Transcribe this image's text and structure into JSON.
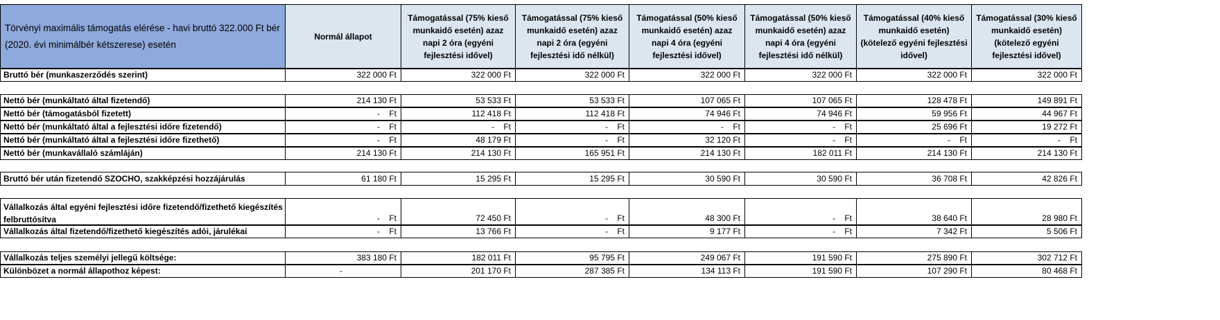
{
  "header": {
    "description": "Törvényi maximális támogatás elérése - havi bruttó 322.000 Ft bér (2020. évi minimálbér kétszerese) esetén",
    "columns": [
      "Normál állapot",
      "Támogatással (75% kieső munkaidő esetén) azaz napi 2 óra (egyéni fejlesztési idővel)",
      "Támogatással (75% kieső munkaidő esetén) azaz napi 2 óra (egyéni fejlesztési idő nélkül)",
      "Támogatással (50% kieső munkaidő esetén) azaz napi 4 óra (egyéni fejlesztési idővel)",
      "Támogatással (50% kieső munkaidő esetén) azaz napi 4 óra (egyéni fejlesztési idő nélkül)",
      "Támogatással (40% kieső munkaidő esetén) (kötelező egyéni fejlesztési idővel)",
      "Támogatással (30% kieső munkaidő esetén) (kötelező egyéni fejlesztési idővel)"
    ]
  },
  "rows": [
    {
      "label": "Bruttó bér (munkaszerződés szerint)",
      "values": [
        "322 000 Ft",
        "322 000 Ft",
        "322 000 Ft",
        "322 000 Ft",
        "322 000 Ft",
        "322 000 Ft",
        "322 000 Ft"
      ]
    },
    {
      "label": "Nettó bér (munkáltató által fizetendő)",
      "values": [
        "214 130 Ft",
        "53 533 Ft",
        "53 533 Ft",
        "107 065 Ft",
        "107 065 Ft",
        "128 478 Ft",
        "149 891 Ft"
      ]
    },
    {
      "label": "Nettó bér (támogatásból fizetett)",
      "values": [
        "-    Ft",
        "112 418 Ft",
        "112 418 Ft",
        "74 946 Ft",
        "74 946 Ft",
        "59 956 Ft",
        "44 967 Ft"
      ]
    },
    {
      "label": "Nettó bér (munkáltató által a fejlesztési időre fizetendő)",
      "values": [
        "-    Ft",
        "-    Ft",
        "-    Ft",
        "-    Ft",
        "-    Ft",
        "25 696 Ft",
        "19 272 Ft"
      ]
    },
    {
      "label": "Nettó bér (munkáltató által a fejlesztési időre fizethető)",
      "values": [
        "-    Ft",
        "48 179 Ft",
        "-    Ft",
        "32 120 Ft",
        "-    Ft",
        "-    Ft",
        "-    Ft"
      ]
    },
    {
      "label": "Nettó bér (munkavállaló számláján)",
      "values": [
        "214 130 Ft",
        "214 130 Ft",
        "165 951 Ft",
        "214 130 Ft",
        "182 011 Ft",
        "214 130 Ft",
        "214 130 Ft"
      ]
    },
    {
      "label": "Bruttó bér után fizetendő SZOCHO, szakképzési hozzájárulás",
      "values": [
        "61 180 Ft",
        "15 295 Ft",
        "15 295 Ft",
        "30 590 Ft",
        "30 590 Ft",
        "36 708 Ft",
        "42 826 Ft"
      ]
    },
    {
      "label": "Vállalkozás által egyéni fejlesztési időre fizetendő/fizethető kiegészítés felbruttósítva",
      "values": [
        "-    Ft",
        "72 450 Ft",
        "-    Ft",
        "48 300 Ft",
        "-    Ft",
        "38 640 Ft",
        "28 980 Ft"
      ]
    },
    {
      "label": "Vállalkozás által fizetendő/fizethető kiegészítés adói, járulékai",
      "values": [
        "-    Ft",
        "13 766 Ft",
        "-    Ft",
        "9 177 Ft",
        "-    Ft",
        "7 342 Ft",
        "5 506 Ft"
      ]
    },
    {
      "label": "Vállalkozás teljes személyi jellegű költsége:",
      "values": [
        "383 180 Ft",
        "182 011 Ft",
        "95 795 Ft",
        "249 067 Ft",
        "191 590 Ft",
        "275 890 Ft",
        "302 712 Ft"
      ]
    },
    {
      "label": "Különbözet a normál állapothoz képest:",
      "values": [
        "-",
        "201 170 Ft",
        "287 385 Ft",
        "134 113 Ft",
        "191 590 Ft",
        "107 290 Ft",
        "80 468 Ft"
      ]
    }
  ]
}
